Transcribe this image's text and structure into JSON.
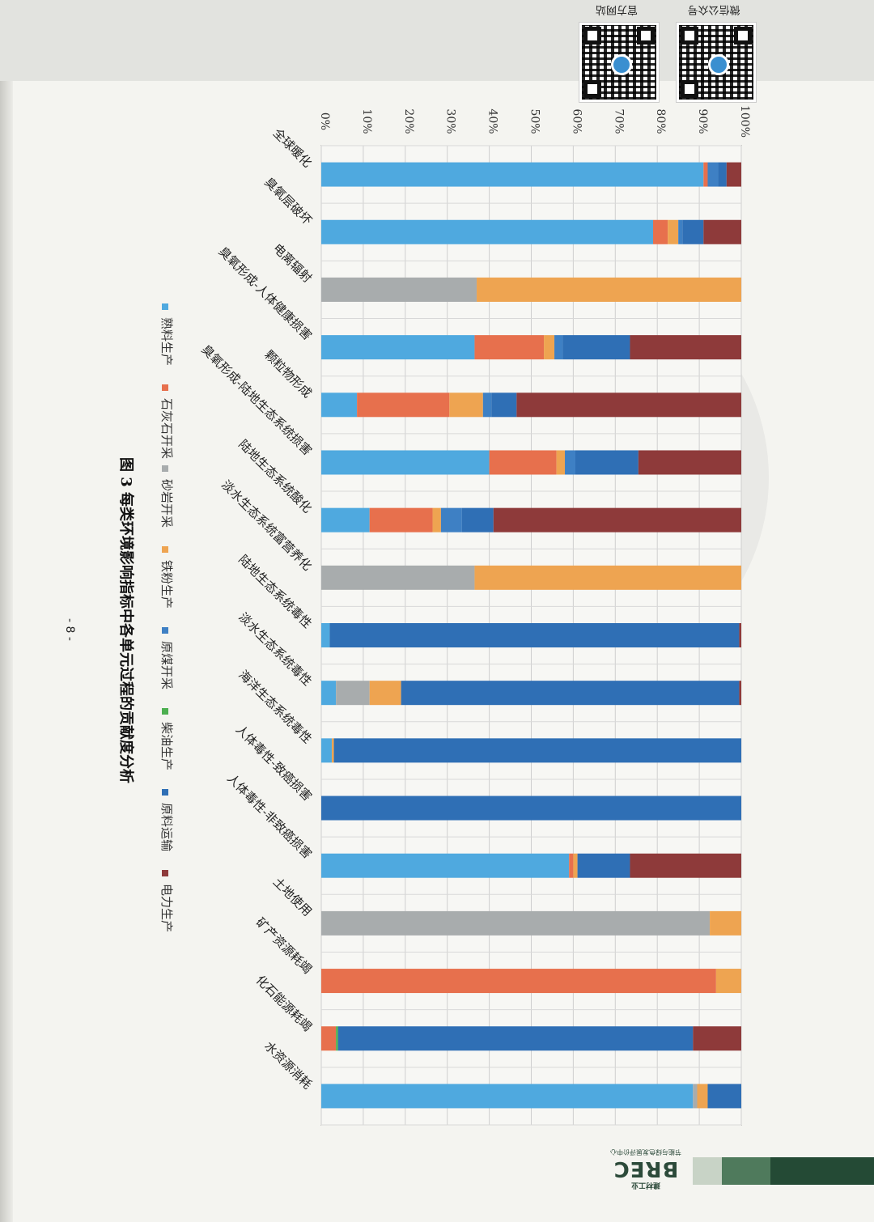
{
  "header": {
    "qr_left_label": "官方网站",
    "qr_right_label": "微信公众号"
  },
  "branding": {
    "logo_main": "BREC",
    "logo_top": "建材工业",
    "logo_sub": "节能与绿色发展评价中心"
  },
  "page_number": "- 8 -",
  "colors": {
    "熟料生产": "#4fa9df",
    "石灰石开采": "#e7704d",
    "砂岩开采": "#a8acad",
    "铁粉生产": "#eea451",
    "原煤开采": "#3e80c4",
    "柴油生产": "#4caf50",
    "原料运输": "#2f6fb5",
    "电力生产": "#8e3a3a"
  },
  "chart_data": {
    "type": "bar",
    "stacked": true,
    "orientation": "rotated-90",
    "title": "图 3 每类环境影响指标中各单元过程的贡献度分析",
    "ylim": [
      0,
      100
    ],
    "y_ticks": [
      "0%",
      "10%",
      "20%",
      "30%",
      "40%",
      "50%",
      "60%",
      "70%",
      "80%",
      "90%",
      "100%"
    ],
    "grid": true,
    "legend_position": "bottom",
    "categories": [
      "全球暖化",
      "臭氧层破坏",
      "电离辐射",
      "臭氧形成-人体健康损害",
      "颗粒物形成",
      "臭氧形成-陆地生态系统损害",
      "陆地生态系统酸化",
      "淡水生态系统富营养化",
      "陆地生态系统毒性",
      "淡水生态系统毒性",
      "海洋生态系统毒性",
      "人体毒性-致癌损害",
      "人体毒性-非致癌损害",
      "土地使用",
      "矿产资源耗竭",
      "化石能源耗竭",
      "水资源消耗"
    ],
    "series": [
      {
        "name": "熟料生产",
        "values": [
          91,
          79,
          0,
          36.5,
          8.5,
          40,
          11.5,
          0,
          2,
          3.5,
          2.5,
          0,
          59,
          0,
          0,
          0,
          88.5
        ]
      },
      {
        "name": "石灰石开采",
        "values": [
          1,
          3.5,
          0,
          16.5,
          22,
          16,
          15,
          0,
          0,
          0,
          0,
          0,
          1,
          0,
          94,
          3.5,
          0
        ]
      },
      {
        "name": "砂岩开采",
        "values": [
          0,
          0,
          37,
          0,
          0,
          0,
          0,
          36.5,
          0,
          8,
          0,
          0,
          0,
          92.5,
          0,
          0,
          1
        ]
      },
      {
        "name": "铁粉生产",
        "values": [
          0,
          2.5,
          63,
          2.5,
          8,
          2,
          2,
          63.5,
          0,
          7.5,
          0.5,
          0,
          1,
          7.5,
          6,
          0,
          2.5
        ]
      },
      {
        "name": "原煤开采",
        "values": [
          2.5,
          1,
          0,
          2,
          2,
          2.5,
          5,
          0,
          0,
          0,
          0,
          0,
          0,
          0,
          0,
          0,
          0
        ]
      },
      {
        "name": "柴油生产",
        "values": [
          0,
          0,
          0,
          0,
          0,
          0,
          0,
          0,
          0,
          0,
          0,
          0,
          0,
          0,
          0,
          0.5,
          0
        ]
      },
      {
        "name": "原料运输",
        "values": [
          2,
          5,
          0,
          16,
          6,
          15,
          7.5,
          0,
          97.5,
          80.5,
          97,
          100,
          12.5,
          0,
          0,
          84.5,
          8
        ]
      },
      {
        "name": "电力生产",
        "values": [
          3.5,
          9,
          0,
          26.5,
          53.5,
          24.5,
          59,
          0,
          0.5,
          0.5,
          0,
          0,
          26.5,
          0,
          0,
          11.5,
          0
        ]
      }
    ]
  }
}
